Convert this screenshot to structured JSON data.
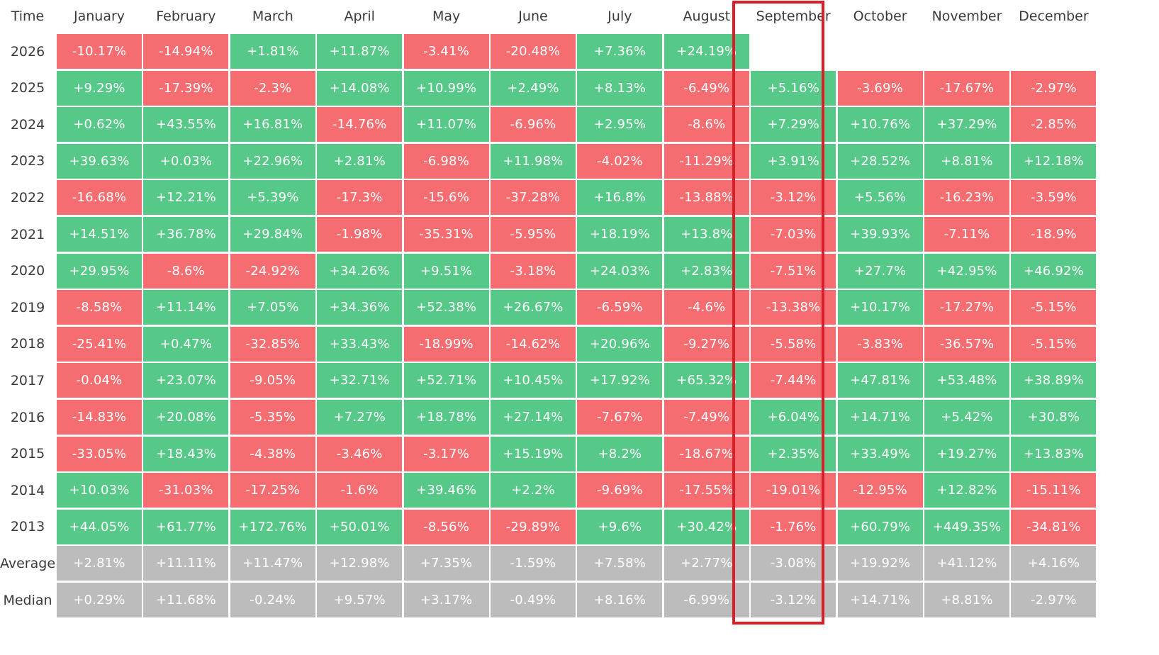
{
  "chart_data": {
    "type": "table",
    "title": "",
    "corner_label": "Time",
    "columns": [
      "January",
      "February",
      "March",
      "April",
      "May",
      "June",
      "July",
      "August",
      "September",
      "October",
      "November",
      "December"
    ],
    "highlighted_column": "September",
    "rows": [
      {
        "label": "2026",
        "values": [
          "-10.17%",
          "-14.94%",
          "+1.81%",
          "+11.87%",
          "-3.41%",
          "-20.48%",
          "+7.36%",
          "+24.19%",
          "",
          "",
          "",
          ""
        ]
      },
      {
        "label": "2025",
        "values": [
          "+9.29%",
          "-17.39%",
          "-2.3%",
          "+14.08%",
          "+10.99%",
          "+2.49%",
          "+8.13%",
          "-6.49%",
          "+5.16%",
          "-3.69%",
          "-17.67%",
          "-2.97%"
        ]
      },
      {
        "label": "2024",
        "values": [
          "+0.62%",
          "+43.55%",
          "+16.81%",
          "-14.76%",
          "+11.07%",
          "-6.96%",
          "+2.95%",
          "-8.6%",
          "+7.29%",
          "+10.76%",
          "+37.29%",
          "-2.85%"
        ]
      },
      {
        "label": "2023",
        "values": [
          "+39.63%",
          "+0.03%",
          "+22.96%",
          "+2.81%",
          "-6.98%",
          "+11.98%",
          "-4.02%",
          "-11.29%",
          "+3.91%",
          "+28.52%",
          "+8.81%",
          "+12.18%"
        ]
      },
      {
        "label": "2022",
        "values": [
          "-16.68%",
          "+12.21%",
          "+5.39%",
          "-17.3%",
          "-15.6%",
          "-37.28%",
          "+16.8%",
          "-13.88%",
          "-3.12%",
          "+5.56%",
          "-16.23%",
          "-3.59%"
        ]
      },
      {
        "label": "2021",
        "values": [
          "+14.51%",
          "+36.78%",
          "+29.84%",
          "-1.98%",
          "-35.31%",
          "-5.95%",
          "+18.19%",
          "+13.8%",
          "-7.03%",
          "+39.93%",
          "-7.11%",
          "-18.9%"
        ]
      },
      {
        "label": "2020",
        "values": [
          "+29.95%",
          "-8.6%",
          "-24.92%",
          "+34.26%",
          "+9.51%",
          "-3.18%",
          "+24.03%",
          "+2.83%",
          "-7.51%",
          "+27.7%",
          "+42.95%",
          "+46.92%"
        ]
      },
      {
        "label": "2019",
        "values": [
          "-8.58%",
          "+11.14%",
          "+7.05%",
          "+34.36%",
          "+52.38%",
          "+26.67%",
          "-6.59%",
          "-4.6%",
          "-13.38%",
          "+10.17%",
          "-17.27%",
          "-5.15%"
        ]
      },
      {
        "label": "2018",
        "values": [
          "-25.41%",
          "+0.47%",
          "-32.85%",
          "+33.43%",
          "-18.99%",
          "-14.62%",
          "+20.96%",
          "-9.27%",
          "-5.58%",
          "-3.83%",
          "-36.57%",
          "-5.15%"
        ]
      },
      {
        "label": "2017",
        "values": [
          "-0.04%",
          "+23.07%",
          "-9.05%",
          "+32.71%",
          "+52.71%",
          "+10.45%",
          "+17.92%",
          "+65.32%",
          "-7.44%",
          "+47.81%",
          "+53.48%",
          "+38.89%"
        ]
      },
      {
        "label": "2016",
        "values": [
          "-14.83%",
          "+20.08%",
          "-5.35%",
          "+7.27%",
          "+18.78%",
          "+27.14%",
          "-7.67%",
          "-7.49%",
          "+6.04%",
          "+14.71%",
          "+5.42%",
          "+30.8%"
        ]
      },
      {
        "label": "2015",
        "values": [
          "-33.05%",
          "+18.43%",
          "-4.38%",
          "-3.46%",
          "-3.17%",
          "+15.19%",
          "+8.2%",
          "-18.67%",
          "+2.35%",
          "+33.49%",
          "+19.27%",
          "+13.83%"
        ]
      },
      {
        "label": "2014",
        "values": [
          "+10.03%",
          "-31.03%",
          "-17.25%",
          "-1.6%",
          "+39.46%",
          "+2.2%",
          "-9.69%",
          "-17.55%",
          "-19.01%",
          "-12.95%",
          "+12.82%",
          "-15.11%"
        ]
      },
      {
        "label": "2013",
        "values": [
          "+44.05%",
          "+61.77%",
          "+172.76%",
          "+50.01%",
          "-8.56%",
          "-29.89%",
          "+9.6%",
          "+30.42%",
          "-1.76%",
          "+60.79%",
          "+449.35%",
          "-34.81%"
        ]
      }
    ],
    "summary_rows": [
      {
        "label": "Average",
        "values": [
          "+2.81%",
          "+11.11%",
          "+11.47%",
          "+12.98%",
          "+7.35%",
          "-1.59%",
          "+7.58%",
          "+2.77%",
          "-3.08%",
          "+19.92%",
          "+41.12%",
          "+4.16%"
        ]
      },
      {
        "label": "Median",
        "values": [
          "+0.29%",
          "+11.68%",
          "-0.24%",
          "+9.57%",
          "+3.17%",
          "-0.49%",
          "+8.16%",
          "-6.99%",
          "-3.12%",
          "+14.71%",
          "+8.81%",
          "-2.97%"
        ]
      }
    ],
    "colors": {
      "positive": "#56c988",
      "negative": "#f66d71",
      "summary": "#bcbcbc",
      "highlight_border": "#d9202a",
      "header_text": "#3a3a3a"
    }
  }
}
